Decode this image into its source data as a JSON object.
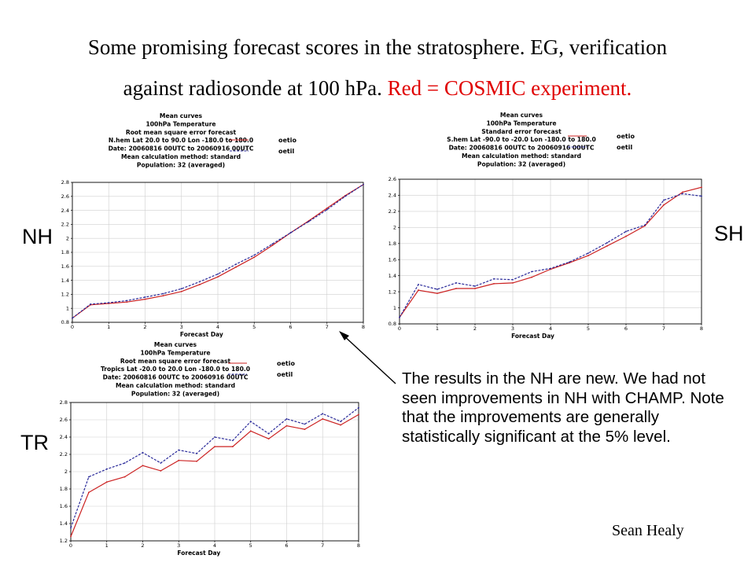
{
  "title": {
    "line1": "Some promising forecast scores in the stratosphere. EG, verification",
    "line2_black": "against radiosonde at 100 hPa.",
    "line2_red": "Red = COSMIC experiment."
  },
  "regions": {
    "nh": "NH",
    "sh": "SH",
    "tr": "TR"
  },
  "note": "The results in the NH are new. We had not seen improvements in NH with CHAMP. Note that the improvements are generally statistically significant at the 5% level.",
  "author": "Sean Healy",
  "colors": {
    "oetio": "#cc2222",
    "oetil": "#2a2a9a",
    "axis": "#000000",
    "arrow": "#000000"
  },
  "chart_data": [
    {
      "type": "line",
      "header": [
        "Mean curves",
        "100hPa Temperature",
        "Root mean square error forecast",
        "N.hem  Lat  20.0 to 90.0 Lon  -180.0 to  180.0",
        "Date: 20060816 00UTC to 20060916 00UTC",
        "Mean calculation method: standard",
        "Population: 32 (averaged)"
      ],
      "xlabel": "Forecast Day",
      "ylabel": "",
      "xlim": [
        0,
        8
      ],
      "ylim": [
        0.8,
        2.8
      ],
      "x_ticks": [
        0,
        1,
        2,
        3,
        4,
        5,
        6,
        7,
        8
      ],
      "y_ticks": [
        0.8,
        1,
        1.2,
        1.4,
        1.6,
        1.8,
        2,
        2.2,
        2.4,
        2.6,
        2.8
      ],
      "legend": "top-right",
      "grid": true,
      "x": [
        0,
        0.5,
        1,
        1.5,
        2,
        2.5,
        3,
        3.5,
        4,
        4.5,
        5,
        5.5,
        6,
        6.5,
        7,
        7.5,
        8
      ],
      "series": [
        {
          "name": "oetio",
          "values": [
            0.86,
            1.05,
            1.07,
            1.09,
            1.13,
            1.18,
            1.24,
            1.34,
            1.45,
            1.59,
            1.73,
            1.9,
            2.08,
            2.25,
            2.43,
            2.61,
            2.77
          ]
        },
        {
          "name": "oetil",
          "values": [
            0.86,
            1.06,
            1.08,
            1.11,
            1.16,
            1.21,
            1.28,
            1.38,
            1.49,
            1.63,
            1.76,
            1.92,
            2.08,
            2.24,
            2.41,
            2.6,
            2.77
          ]
        }
      ]
    },
    {
      "type": "line",
      "header": [
        "Mean curves",
        "100hPa Temperature",
        "Standard error forecast",
        "S.hem  Lat  -90.0 to  -20.0 Lon  -180.0 to  180.0",
        "Date: 20060816 00UTC to 20060916 00UTC",
        "Mean calculation method: standard",
        "Population: 32 (averaged)"
      ],
      "xlabel": "Forecast Day",
      "ylabel": "",
      "xlim": [
        0,
        8
      ],
      "ylim": [
        0.8,
        2.6
      ],
      "x_ticks": [
        0,
        1,
        2,
        3,
        4,
        5,
        6,
        7,
        8
      ],
      "y_ticks": [
        0.8,
        1,
        1.2,
        1.4,
        1.6,
        1.8,
        2,
        2.2,
        2.4,
        2.6
      ],
      "legend": "top-right",
      "grid": true,
      "x": [
        0,
        0.5,
        1,
        1.5,
        2,
        2.5,
        3,
        3.5,
        4,
        4.5,
        5,
        5.5,
        6,
        6.5,
        7,
        7.5,
        8
      ],
      "series": [
        {
          "name": "oetio",
          "values": [
            0.88,
            1.22,
            1.18,
            1.24,
            1.24,
            1.3,
            1.31,
            1.38,
            1.48,
            1.56,
            1.65,
            1.77,
            1.89,
            2.02,
            2.28,
            2.44,
            2.5
          ]
        },
        {
          "name": "oetil",
          "values": [
            0.88,
            1.29,
            1.23,
            1.31,
            1.27,
            1.36,
            1.35,
            1.45,
            1.49,
            1.57,
            1.68,
            1.81,
            1.95,
            2.03,
            2.34,
            2.42,
            2.39
          ]
        }
      ]
    },
    {
      "type": "line",
      "header": [
        "Mean curves",
        "100hPa Temperature",
        "Root mean square error forecast",
        "Tropics  Lat  -20.0 to  20.0 Lon  -180.0 to  180.0",
        "Date: 20060816 00UTC to 20060916 00UTC",
        "Mean calculation method: standard",
        "Population: 32 (averaged)"
      ],
      "xlabel": "Forecast Day",
      "ylabel": "",
      "xlim": [
        0,
        8
      ],
      "ylim": [
        1.2,
        2.8
      ],
      "x_ticks": [
        0,
        1,
        2,
        3,
        4,
        5,
        6,
        7,
        8
      ],
      "y_ticks": [
        1.2,
        1.4,
        1.6,
        1.8,
        2,
        2.2,
        2.4,
        2.6,
        2.8
      ],
      "legend": "top-right",
      "grid": true,
      "x": [
        0,
        0.5,
        1,
        1.5,
        2,
        2.5,
        3,
        3.5,
        4,
        4.5,
        5,
        5.5,
        6,
        6.5,
        7,
        7.5,
        8
      ],
      "series": [
        {
          "name": "oetio",
          "values": [
            1.25,
            1.76,
            1.88,
            1.94,
            2.07,
            2.01,
            2.13,
            2.12,
            2.29,
            2.29,
            2.47,
            2.38,
            2.53,
            2.49,
            2.61,
            2.54,
            2.66
          ]
        },
        {
          "name": "oetil",
          "values": [
            1.35,
            1.94,
            2.03,
            2.1,
            2.22,
            2.1,
            2.25,
            2.21,
            2.4,
            2.36,
            2.58,
            2.44,
            2.61,
            2.55,
            2.67,
            2.58,
            2.74
          ]
        }
      ]
    }
  ]
}
